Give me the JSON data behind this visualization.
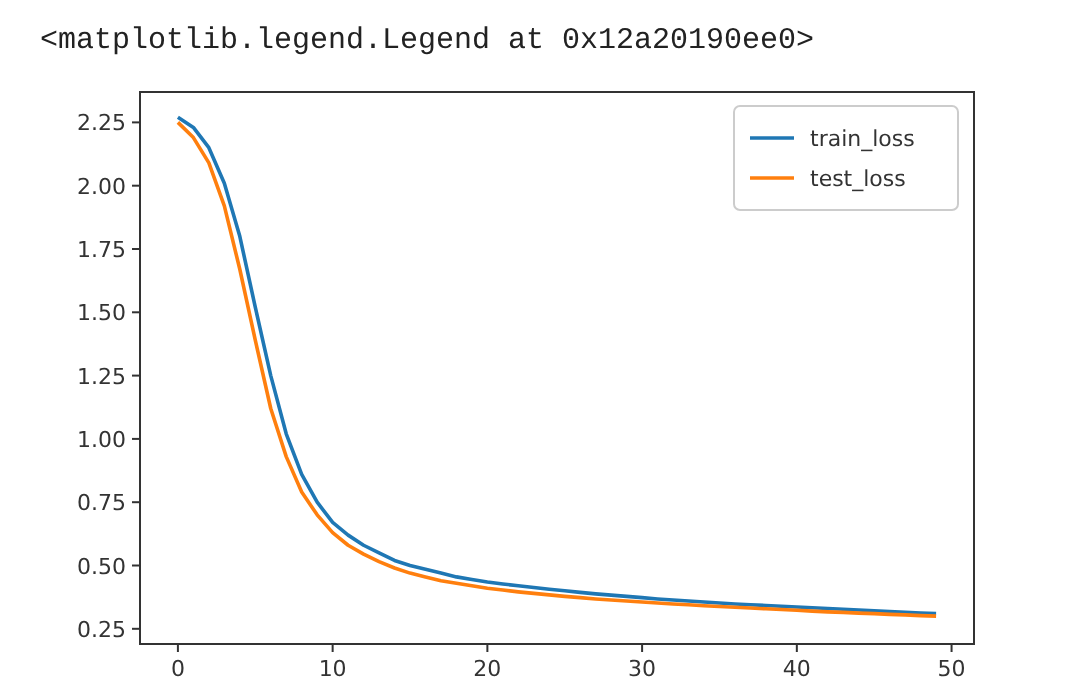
{
  "chart_data": {
    "type": "line",
    "annotations": [
      "<matplotlib.legend.Legend at 0x12a20190ee0>"
    ],
    "x": [
      0,
      1,
      2,
      3,
      4,
      5,
      6,
      7,
      8,
      9,
      10,
      11,
      12,
      13,
      14,
      15,
      16,
      17,
      18,
      19,
      20,
      21,
      22,
      23,
      24,
      25,
      26,
      27,
      28,
      29,
      30,
      31,
      32,
      33,
      34,
      35,
      36,
      37,
      38,
      39,
      40,
      41,
      42,
      43,
      44,
      45,
      46,
      47,
      48,
      49
    ],
    "series": [
      {
        "name": "train_loss",
        "color": "#1f77b4",
        "values": [
          2.27,
          2.23,
          2.15,
          2.01,
          1.8,
          1.52,
          1.25,
          1.02,
          0.86,
          0.75,
          0.67,
          0.62,
          0.58,
          0.55,
          0.52,
          0.5,
          0.485,
          0.47,
          0.455,
          0.445,
          0.435,
          0.427,
          0.42,
          0.413,
          0.406,
          0.4,
          0.394,
          0.388,
          0.383,
          0.378,
          0.373,
          0.368,
          0.364,
          0.36,
          0.356,
          0.352,
          0.348,
          0.345,
          0.342,
          0.339,
          0.336,
          0.333,
          0.33,
          0.327,
          0.324,
          0.321,
          0.318,
          0.315,
          0.312,
          0.31
        ]
      },
      {
        "name": "test_loss",
        "color": "#ff7f0e",
        "values": [
          2.25,
          2.19,
          2.09,
          1.92,
          1.67,
          1.39,
          1.12,
          0.93,
          0.79,
          0.7,
          0.63,
          0.58,
          0.545,
          0.515,
          0.49,
          0.47,
          0.455,
          0.44,
          0.43,
          0.42,
          0.41,
          0.403,
          0.396,
          0.39,
          0.384,
          0.378,
          0.373,
          0.368,
          0.364,
          0.36,
          0.356,
          0.352,
          0.348,
          0.345,
          0.341,
          0.338,
          0.335,
          0.332,
          0.329,
          0.326,
          0.323,
          0.32,
          0.317,
          0.315,
          0.312,
          0.31,
          0.307,
          0.305,
          0.302,
          0.3
        ]
      }
    ],
    "xlim": [
      -2.45,
      51.45
    ],
    "xticks": [
      0,
      10,
      20,
      30,
      40,
      50
    ],
    "ylim": [
      0.19,
      2.37
    ],
    "yticks": [
      {
        "value": 0.25,
        "label": "0.25"
      },
      {
        "value": 0.5,
        "label": "0.50"
      },
      {
        "value": 0.75,
        "label": "0.75"
      },
      {
        "value": 1,
        "label": "1.00"
      },
      {
        "value": 1.25,
        "label": "1.25"
      },
      {
        "value": 1.5,
        "label": "1.50"
      },
      {
        "value": 1.75,
        "label": "1.75"
      },
      {
        "value": 2,
        "label": "2.00"
      },
      {
        "value": 2.25,
        "label": "2.25"
      }
    ],
    "legend": "top right",
    "grid": false,
    "line_style": "solid"
  }
}
